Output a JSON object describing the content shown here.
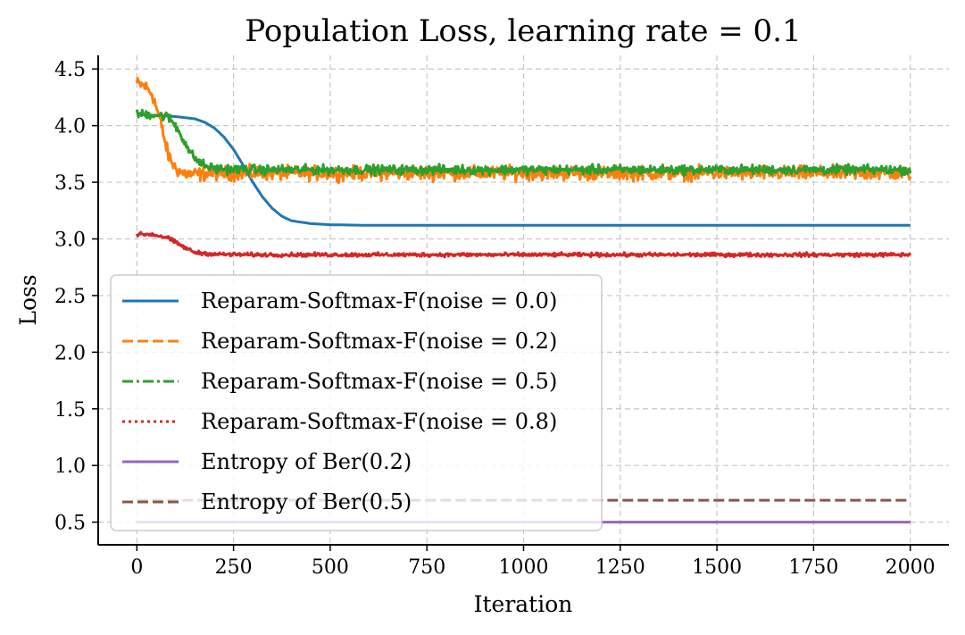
{
  "chart_data": {
    "type": "line",
    "title": "Population Loss, learning rate = 0.1",
    "xlabel": "Iteration",
    "ylabel": "Loss",
    "xlim": [
      -100,
      2100
    ],
    "ylim": [
      0.3,
      4.62
    ],
    "xticks": [
      0,
      250,
      500,
      750,
      1000,
      1250,
      1500,
      1750,
      2000
    ],
    "yticks": [
      0.5,
      1.0,
      1.5,
      2.0,
      2.5,
      3.0,
      3.5,
      4.0,
      4.5
    ],
    "ytick_labels": [
      "0.5",
      "1.0",
      "1.5",
      "2.0",
      "2.5",
      "3.0",
      "3.5",
      "4.0",
      "4.5"
    ],
    "grid": true,
    "legend_position": "lower-left",
    "series": [
      {
        "name": "Reparam-Softmax-F(noise = 0.0)",
        "color": "#1f77b4",
        "style": "solid",
        "x": [
          0,
          50,
          100,
          150,
          175,
          200,
          225,
          250,
          275,
          300,
          325,
          350,
          375,
          400,
          450,
          500,
          600,
          800,
          1000,
          1500,
          2000
        ],
        "y": [
          4.1,
          4.09,
          4.08,
          4.06,
          4.03,
          3.98,
          3.9,
          3.79,
          3.65,
          3.5,
          3.37,
          3.27,
          3.2,
          3.16,
          3.135,
          3.125,
          3.12,
          3.12,
          3.12,
          3.12,
          3.12
        ],
        "noise": 0
      },
      {
        "name": "Reparam-Softmax-F(noise = 0.2)",
        "color": "#ff7f0e",
        "style": "dashed",
        "x": [
          0,
          20,
          40,
          60,
          80,
          100,
          120,
          140,
          160,
          200,
          300,
          500,
          1000,
          1500,
          2000
        ],
        "y": [
          4.37,
          4.35,
          4.28,
          4.05,
          3.75,
          3.62,
          3.58,
          3.57,
          3.57,
          3.58,
          3.58,
          3.58,
          3.58,
          3.58,
          3.58
        ],
        "noise": 0.03
      },
      {
        "name": "Reparam-Softmax-F(noise = 0.5)",
        "color": "#2ca02c",
        "style": "dashdot",
        "x": [
          0,
          40,
          80,
          100,
          120,
          140,
          160,
          180,
          200,
          300,
          500,
          1000,
          1500,
          2000
        ],
        "y": [
          4.1,
          4.1,
          4.08,
          4.0,
          3.88,
          3.75,
          3.68,
          3.64,
          3.62,
          3.61,
          3.61,
          3.61,
          3.61,
          3.61
        ],
        "noise": 0.02
      },
      {
        "name": "Reparam-Softmax-F(noise = 0.8)",
        "color": "#d62728",
        "style": "dotted",
        "x": [
          0,
          40,
          80,
          100,
          120,
          150,
          200,
          300,
          500,
          1000,
          1500,
          2000
        ],
        "y": [
          3.04,
          3.04,
          3.01,
          2.97,
          2.93,
          2.88,
          2.865,
          2.86,
          2.86,
          2.86,
          2.86,
          2.86
        ],
        "noise": 0.008
      },
      {
        "name": "Entropy of Ber(0.2)",
        "color": "#9467bd",
        "style": "solid",
        "x": [
          0,
          2000
        ],
        "y": [
          0.5004,
          0.5004
        ],
        "noise": 0
      },
      {
        "name": "Entropy of Ber(0.5)",
        "color": "#8c564b",
        "style": "dashed",
        "x": [
          0,
          2000
        ],
        "y": [
          0.6931,
          0.6931
        ],
        "noise": 0
      }
    ]
  }
}
